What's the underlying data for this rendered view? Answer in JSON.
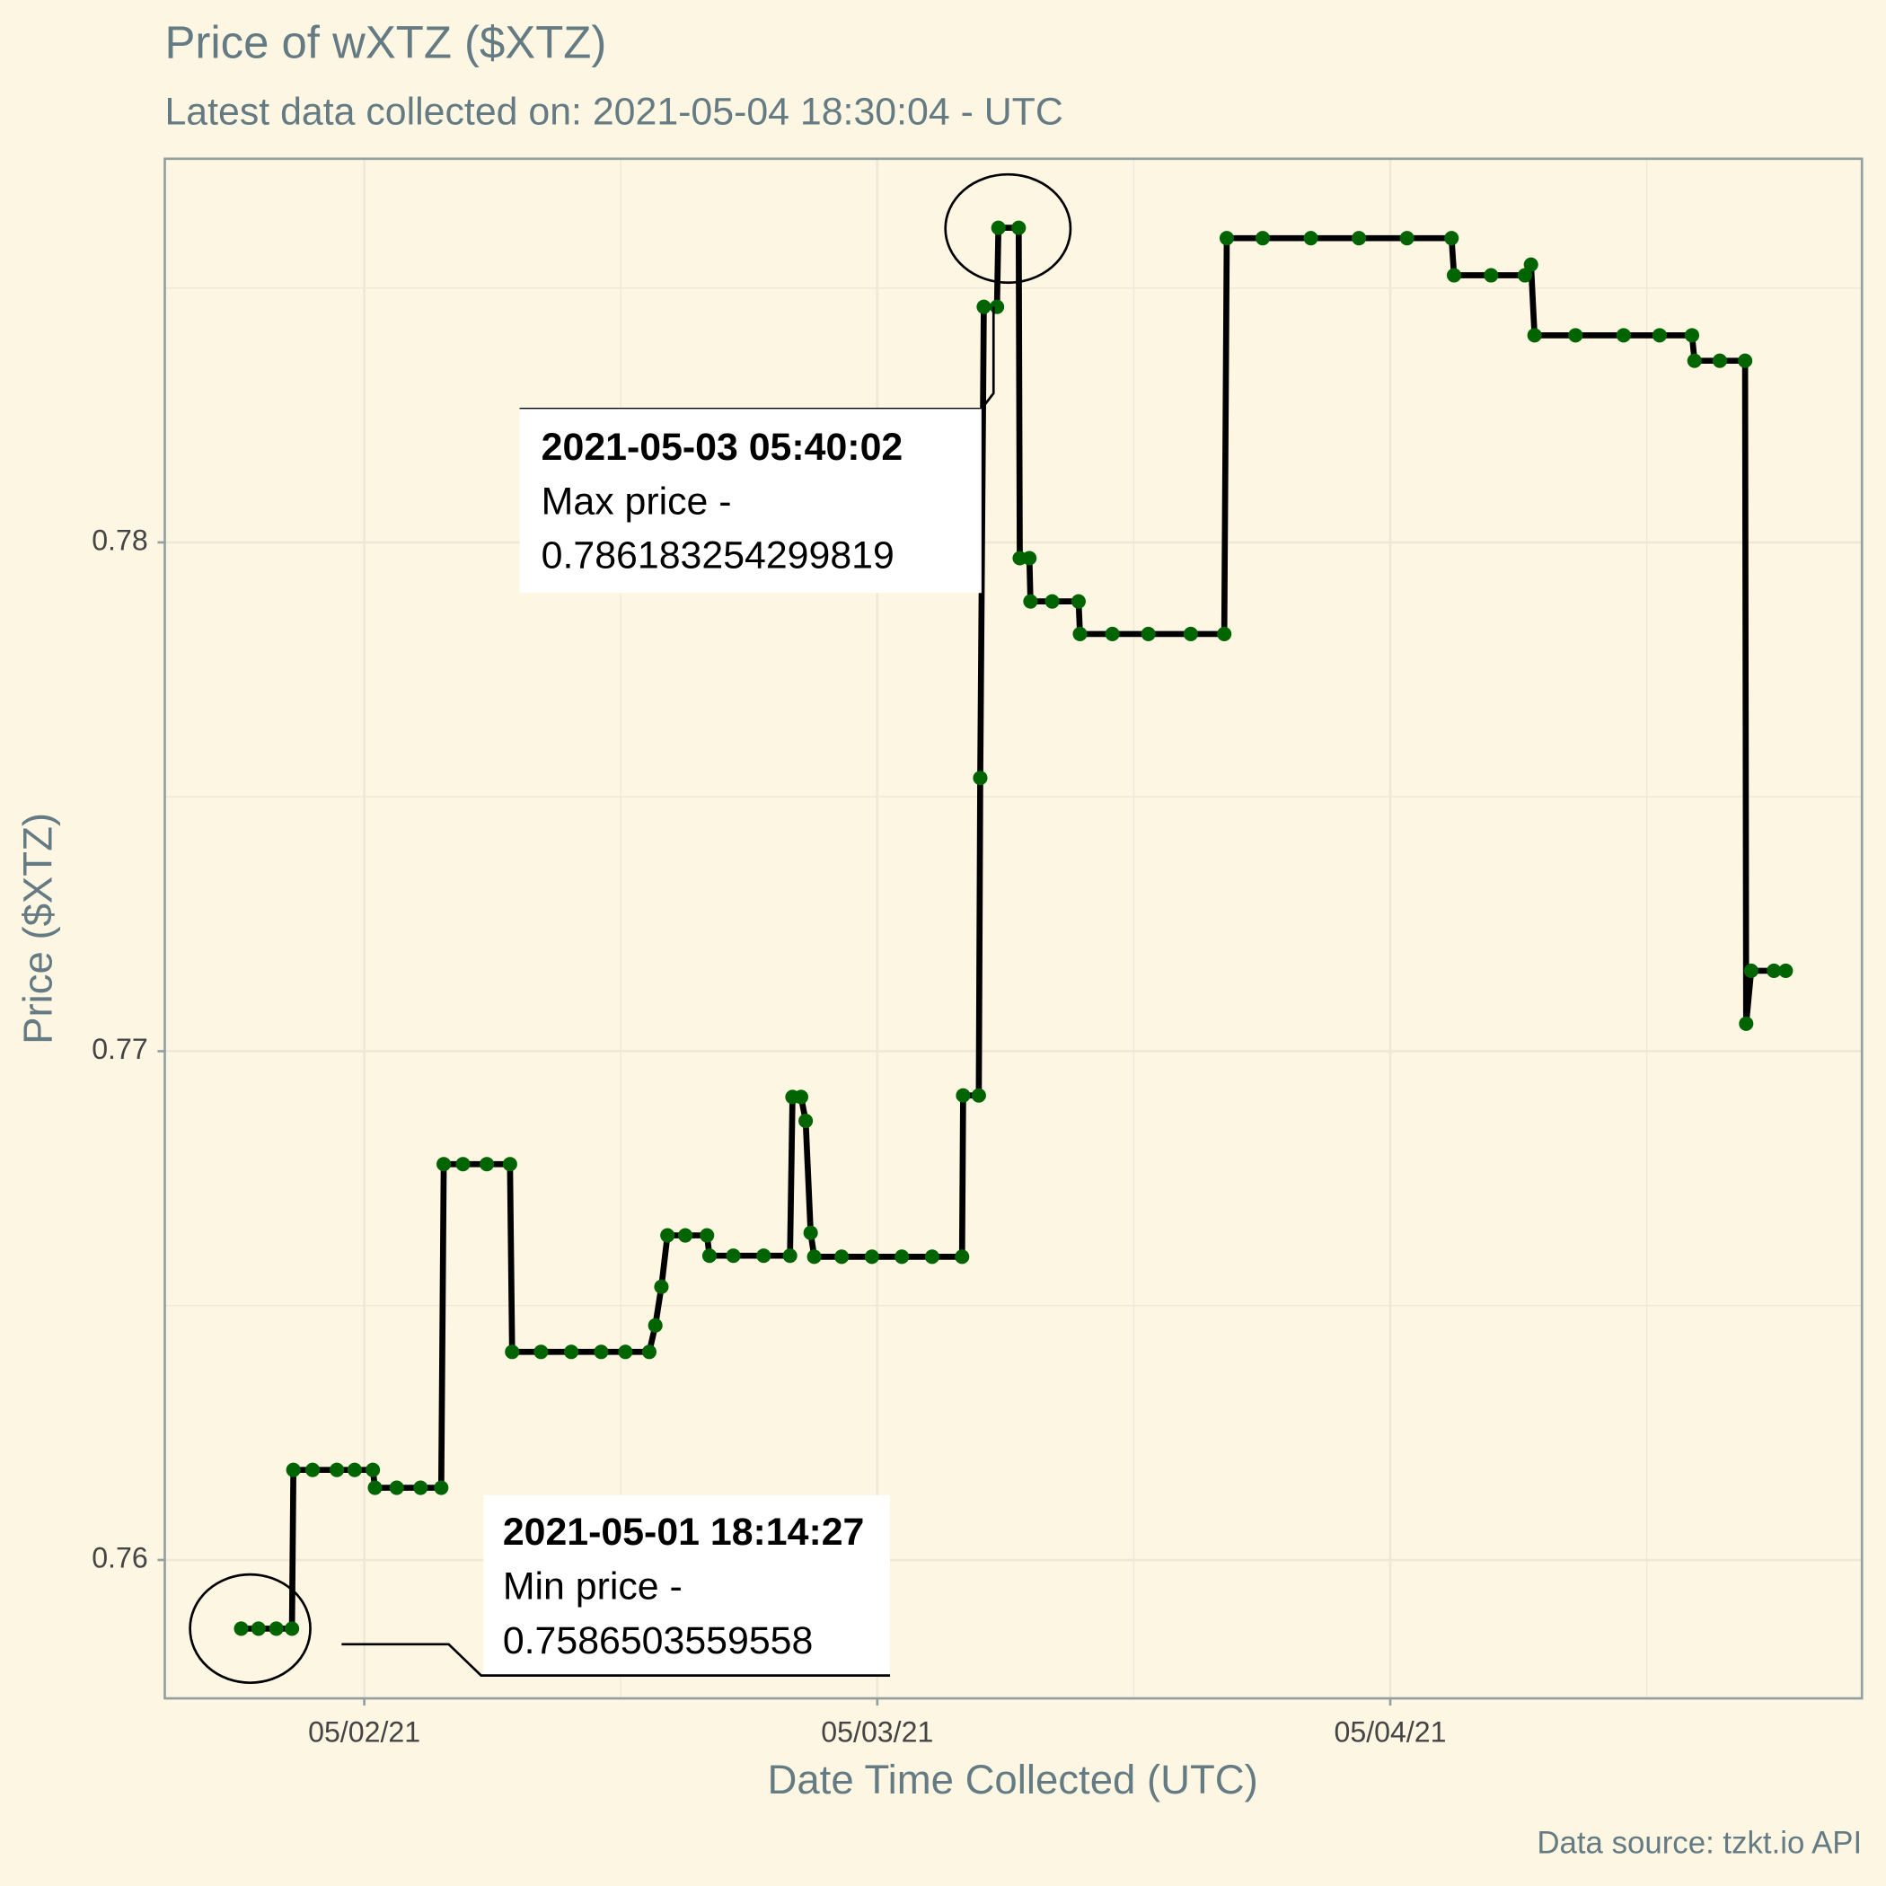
{
  "chart_data": {
    "type": "line",
    "title": "Price of wXTZ ($XTZ)",
    "subtitle": "Latest data collected on: 2021-05-04 18:30:04  - UTC",
    "x_label": "Date Time Collected (UTC)",
    "y_label": "Price ($XTZ)",
    "caption": "Data source: tzkt.io API",
    "line_color": "#000000",
    "point_color": "#006400",
    "grid": true,
    "x": [
      "2021-05-01 18:14:27",
      "2021-05-01 19:03",
      "2021-05-01 19:53",
      "2021-05-01 20:37",
      "2021-05-01 20:41",
      "2021-05-01 21:35",
      "2021-05-01 22:43",
      "2021-05-01 23:33",
      "2021-05-02 00:24",
      "2021-05-02 00:30",
      "2021-05-02 01:31",
      "2021-05-02 02:38",
      "2021-05-02 03:36",
      "2021-05-02 03:43",
      "2021-05-02 04:37",
      "2021-05-02 05:44",
      "2021-05-02 06:49",
      "2021-05-02 06:55",
      "2021-05-02 08:16",
      "2021-05-02 09:41",
      "2021-05-02 11:05",
      "2021-05-02 12:13",
      "2021-05-02 13:20",
      "2021-05-02 13:37",
      "2021-05-02 13:54",
      "2021-05-02 14:11",
      "2021-05-02 15:01",
      "2021-05-02 16:02",
      "2021-05-02 16:09",
      "2021-05-02 17:16",
      "2021-05-02 18:41",
      "2021-05-02 19:55",
      "2021-05-02 20:02",
      "2021-05-02 20:26",
      "2021-05-02 20:39",
      "2021-05-02 20:53",
      "2021-05-02 21:03",
      "2021-05-02 22:20",
      "2021-05-02 23:45",
      "2021-05-03 01:09",
      "2021-05-03 02:34",
      "2021-05-03 03:58",
      "2021-05-03 04:01",
      "2021-05-03 04:45",
      "2021-05-03 04:49",
      "2021-05-03 04:59",
      "2021-05-03 05:36",
      "2021-05-03 05:40:02",
      "2021-05-03 06:37",
      "2021-05-03 06:40",
      "2021-05-03 07:07",
      "2021-05-03 07:10",
      "2021-05-03 08:11",
      "2021-05-03 09:25",
      "2021-05-03 09:29",
      "2021-05-03 11:00",
      "2021-05-03 12:41",
      "2021-05-03 14:40",
      "2021-05-03 16:14",
      "2021-05-03 16:21",
      "2021-05-03 18:02",
      "2021-05-03 20:17",
      "2021-05-03 22:32",
      "2021-05-04 00:47",
      "2021-05-04 02:52",
      "2021-05-04 02:59",
      "2021-05-04 04:43",
      "2021-05-04 06:18",
      "2021-05-04 06:35",
      "2021-05-04 06:45",
      "2021-05-04 08:40",
      "2021-05-04 10:55",
      "2021-05-04 12:36",
      "2021-05-04 14:07",
      "2021-05-04 14:14",
      "2021-05-04 15:25",
      "2021-05-04 16:36",
      "2021-05-04 16:39",
      "2021-05-04 16:53",
      "2021-05-04 17:57",
      "2021-05-04 18:30:04"
    ],
    "values": [
      0.7586503559558,
      0.7586503559558,
      0.7586503559558,
      0.7586503559558,
      0.76177,
      0.76177,
      0.76177,
      0.76177,
      0.76177,
      0.76142,
      0.76142,
      0.76142,
      0.76142,
      0.76778,
      0.76778,
      0.76778,
      0.76778,
      0.76409,
      0.76409,
      0.76409,
      0.76409,
      0.76409,
      0.76409,
      0.76461,
      0.76537,
      0.76638,
      0.76638,
      0.76638,
      0.76598,
      0.76598,
      0.76598,
      0.76598,
      0.7691,
      0.7691,
      0.76863,
      0.76643,
      0.76596,
      0.76596,
      0.76596,
      0.76596,
      0.76596,
      0.76596,
      0.76913,
      0.76913,
      0.77537,
      0.78463,
      0.78463,
      0.786183254299819,
      0.786183254299819,
      0.77969,
      0.77969,
      0.77884,
      0.77884,
      0.77884,
      0.7782,
      0.7782,
      0.7782,
      0.7782,
      0.7782,
      0.78598,
      0.78598,
      0.78598,
      0.78598,
      0.78598,
      0.78598,
      0.78525,
      0.78525,
      0.78525,
      0.78546,
      0.78407,
      0.78407,
      0.78407,
      0.78407,
      0.78407,
      0.78357,
      0.78357,
      0.78357,
      0.77054,
      0.77158,
      0.77158,
      0.77158
    ],
    "xlim": [
      "2021-05-01 14:40",
      "2021-05-04 22:04"
    ],
    "xticks": [
      {
        "value": "2021-05-02 00:00",
        "label": "05/02/21"
      },
      {
        "value": "2021-05-03 00:00",
        "label": "05/03/21"
      },
      {
        "value": "2021-05-04 00:00",
        "label": "05/04/21"
      }
    ],
    "ylim": [
      0.75728,
      0.78754
    ],
    "yticks": [
      0.76,
      0.77,
      0.78
    ],
    "annotations": [
      {
        "title": "2021-05-03 05:40:02",
        "lines": [
          "Max price -",
          "0.786183254299819"
        ]
      },
      {
        "title": "2021-05-01 18:14:27",
        "lines": [
          "Min price -",
          "0.7586503559558"
        ]
      }
    ]
  }
}
